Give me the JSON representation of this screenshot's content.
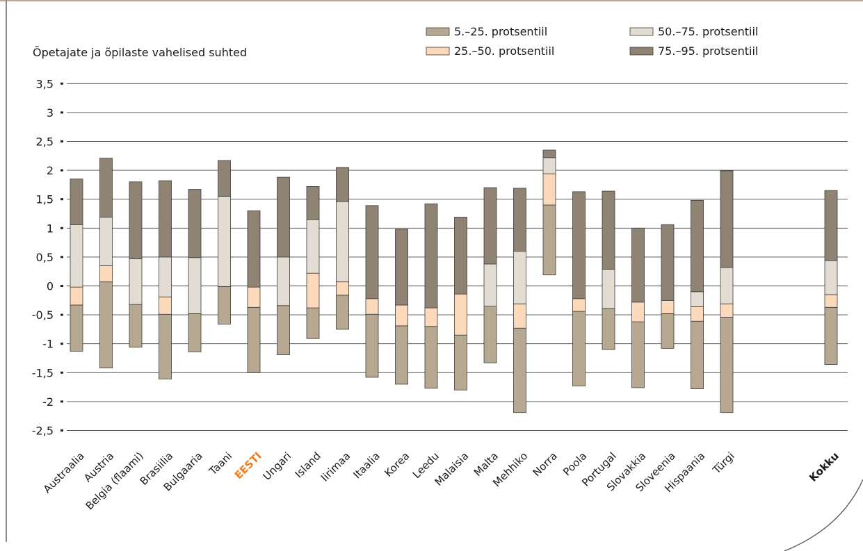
{
  "chart_data": {
    "type": "bar",
    "ylabel": "Õpetajate ja õpilaste vahelised suhted",
    "ylim": [
      -2.5,
      3.5
    ],
    "yticks": [
      3.5,
      3,
      2.5,
      2,
      1.5,
      1,
      0.5,
      0,
      -0.5,
      -1,
      -1.5,
      -2,
      -2.5
    ],
    "ytick_labels": [
      "3,5",
      "3",
      "2,5",
      "2",
      "1,5",
      "1",
      "0,5",
      "0",
      "-0,5",
      "-1",
      "-1,5",
      "-2",
      "-2,5"
    ],
    "grid": true,
    "legend_position": "top-right",
    "series": [
      {
        "name": "5.–25. protsentiil",
        "color": "#b7a892"
      },
      {
        "name": "25.–50. protsentiil",
        "color": "#fdd9bc"
      },
      {
        "name": "50.–75. protsentiil",
        "color": "#e2dcd2"
      },
      {
        "name": "75.–95. protsentiil",
        "color": "#8f8474"
      }
    ],
    "legend_order": [
      0,
      2,
      1,
      3
    ],
    "categories": [
      "Austraalia",
      "Austria",
      "Belgia (flaami)",
      "Brasiilia",
      "Bulgaaria",
      "Taani",
      "EESTI",
      "Ungari",
      "Island",
      "Iirimaa",
      "Itaalia",
      "Korea",
      "Leedu",
      "Malaisia",
      "Malta",
      "Mehhiko",
      "Norra",
      "Poola",
      "Portugal",
      "Slovakkia",
      "Sloveenia",
      "Hispaania",
      "Türgi",
      "Kokku"
    ],
    "highlight_category": "EESTI",
    "total_category": "Kokku",
    "percentiles": [
      [
        -1.13,
        -0.33,
        -0.02,
        1.06,
        1.85
      ],
      [
        -1.42,
        0.07,
        0.35,
        1.19,
        2.21
      ],
      [
        -1.06,
        -0.32,
        -0.32,
        0.47,
        1.8
      ],
      [
        -1.61,
        -0.49,
        -0.19,
        0.5,
        1.82
      ],
      [
        -1.14,
        -0.48,
        -0.48,
        0.49,
        1.67
      ],
      [
        -0.66,
        -0.01,
        -0.01,
        1.55,
        2.17
      ],
      [
        -1.5,
        -0.37,
        -0.02,
        -0.02,
        1.3
      ],
      [
        -1.19,
        -0.34,
        -0.34,
        0.5,
        1.88
      ],
      [
        -0.91,
        -0.38,
        0.22,
        1.15,
        1.72
      ],
      [
        -0.75,
        -0.16,
        0.07,
        1.46,
        2.05
      ],
      [
        -1.58,
        -0.49,
        -0.22,
        -0.22,
        1.39
      ],
      [
        -1.7,
        -0.69,
        -0.33,
        -0.33,
        0.98
      ],
      [
        -1.77,
        -0.7,
        -0.38,
        -0.38,
        1.42
      ],
      [
        -1.8,
        -0.85,
        -0.14,
        -0.14,
        1.19
      ],
      [
        -1.33,
        -0.35,
        -0.35,
        0.38,
        1.7
      ],
      [
        -2.19,
        -0.73,
        -0.31,
        0.6,
        1.69
      ],
      [
        0.19,
        1.4,
        1.94,
        2.22,
        2.35
      ],
      [
        -1.73,
        -0.44,
        -0.22,
        -0.22,
        1.63
      ],
      [
        -1.1,
        -0.39,
        -0.39,
        0.29,
        1.64
      ],
      [
        -1.76,
        -0.62,
        -0.28,
        -0.28,
        1.0
      ],
      [
        -1.08,
        -0.48,
        -0.25,
        -0.25,
        1.06
      ],
      [
        -1.78,
        -0.61,
        -0.36,
        -0.1,
        1.48
      ],
      [
        -2.19,
        -0.54,
        -0.31,
        0.32,
        1.99
      ],
      [
        -1.36,
        -0.37,
        -0.15,
        0.44,
        1.65
      ]
    ]
  }
}
